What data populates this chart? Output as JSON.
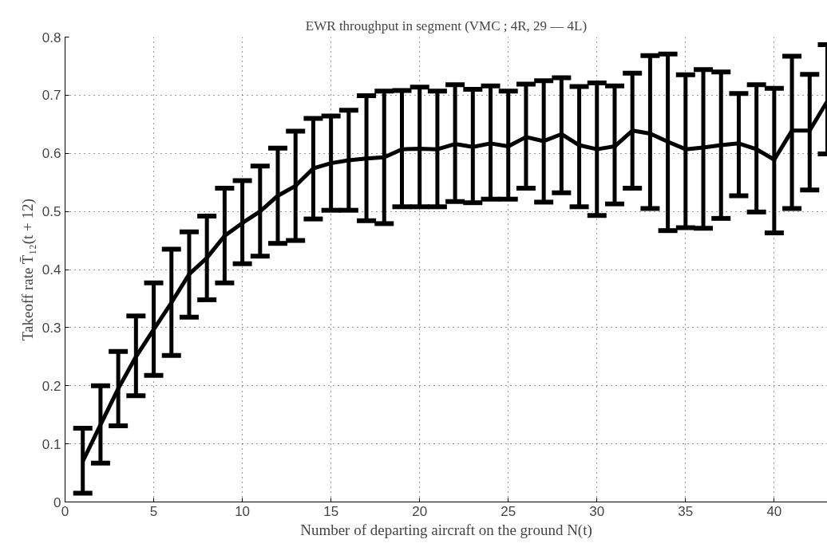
{
  "chart_data": {
    "type": "line",
    "title": "EWR throughput in segment (VMC ; 4R, 29 — 4L)",
    "xlabel": "Number of departing aircraft on the ground N(t)",
    "ylabel": "Takeoff rate T̄₁₂(t + 12)",
    "x": [
      1,
      2,
      3,
      4,
      5,
      6,
      7,
      8,
      9,
      10,
      11,
      12,
      13,
      14,
      15,
      16,
      17,
      18,
      19,
      20,
      21,
      22,
      23,
      24,
      25,
      26,
      27,
      28,
      29,
      30,
      31,
      32,
      33,
      34,
      35,
      36,
      37,
      38,
      39,
      40,
      41,
      42,
      43
    ],
    "series": [
      {
        "color": "#000000",
        "values": [
          0.07,
          0.133,
          0.195,
          0.25,
          0.297,
          0.343,
          0.392,
          0.42,
          0.458,
          0.48,
          0.5,
          0.527,
          0.544,
          0.574,
          0.583,
          0.588,
          0.591,
          0.593,
          0.607,
          0.608,
          0.607,
          0.616,
          0.611,
          0.617,
          0.612,
          0.628,
          0.621,
          0.633,
          0.614,
          0.607,
          0.612,
          0.639,
          0.634,
          0.62,
          0.607,
          0.61,
          0.614,
          0.617,
          0.607,
          0.589,
          0.639,
          0.639,
          0.69
        ],
        "errors": [
          [
            0.015,
            0.127
          ],
          [
            0.067,
            0.2
          ],
          [
            0.131,
            0.259
          ],
          [
            0.183,
            0.32
          ],
          [
            0.218,
            0.377
          ],
          [
            0.252,
            0.435
          ],
          [
            0.318,
            0.465
          ],
          [
            0.348,
            0.492
          ],
          [
            0.377,
            0.54
          ],
          [
            0.41,
            0.553
          ],
          [
            0.423,
            0.578
          ],
          [
            0.445,
            0.609
          ],
          [
            0.45,
            0.638
          ],
          [
            0.487,
            0.66
          ],
          [
            0.502,
            0.664
          ],
          [
            0.502,
            0.674
          ],
          [
            0.484,
            0.699
          ],
          [
            0.479,
            0.707
          ],
          [
            0.508,
            0.708
          ],
          [
            0.508,
            0.714
          ],
          [
            0.508,
            0.707
          ],
          [
            0.517,
            0.718
          ],
          [
            0.515,
            0.71
          ],
          [
            0.521,
            0.716
          ],
          [
            0.521,
            0.707
          ],
          [
            0.54,
            0.719
          ],
          [
            0.516,
            0.725
          ],
          [
            0.532,
            0.73
          ],
          [
            0.508,
            0.715
          ],
          [
            0.493,
            0.721
          ],
          [
            0.513,
            0.716
          ],
          [
            0.54,
            0.738
          ],
          [
            0.505,
            0.768
          ],
          [
            0.467,
            0.771
          ],
          [
            0.472,
            0.735
          ],
          [
            0.471,
            0.744
          ],
          [
            0.488,
            0.74
          ],
          [
            0.527,
            0.703
          ],
          [
            0.499,
            0.718
          ],
          [
            0.463,
            0.712
          ],
          [
            0.505,
            0.767
          ],
          [
            0.537,
            0.736
          ],
          [
            0.599,
            0.787
          ]
        ]
      }
    ],
    "xlim": [
      0,
      43
    ],
    "ylim": [
      0,
      0.8
    ],
    "xticks": [
      0,
      5,
      10,
      15,
      20,
      25,
      30,
      35,
      40
    ],
    "yticks": [
      0,
      0.1,
      0.2,
      0.3,
      0.4,
      0.5,
      0.6,
      0.7,
      0.8
    ],
    "grid": true,
    "line_style": "solid",
    "marker": "none"
  }
}
